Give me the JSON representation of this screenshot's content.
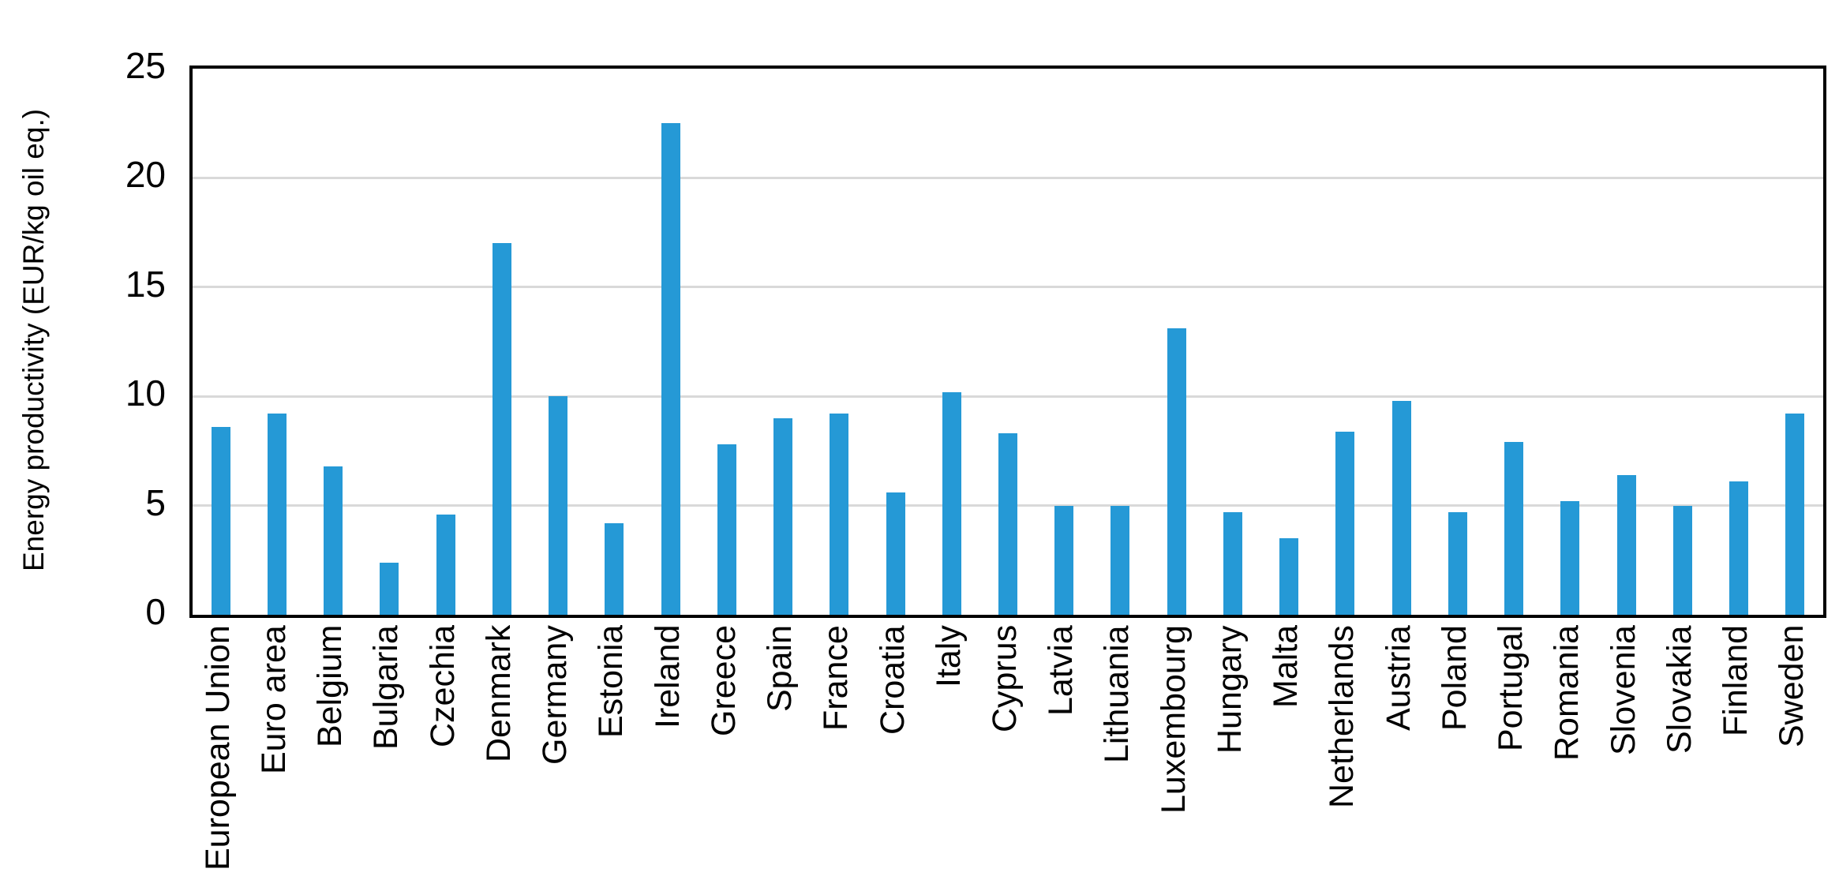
{
  "chart_data": {
    "type": "bar",
    "title": "",
    "xlabel": "",
    "ylabel": "Energy productivity (EUR/kg oil eq.)",
    "ylim": [
      0,
      25
    ],
    "y_ticks": [
      0,
      5,
      10,
      15,
      20,
      25
    ],
    "grid": true,
    "legend": false,
    "bar_color": "#2599D6",
    "gridline_color": "#D9D9D9",
    "axis_color": "#000000",
    "categories": [
      "European Union",
      "Euro area",
      "Belgium",
      "Bulgaria",
      "Czechia",
      "Denmark",
      "Germany",
      "Estonia",
      "Ireland",
      "Greece",
      "Spain",
      "France",
      "Croatia",
      "Italy",
      "Cyprus",
      "Latvia",
      "Lithuania",
      "Luxembourg",
      "Hungary",
      "Malta",
      "Netherlands",
      "Austria",
      "Poland",
      "Portugal",
      "Romania",
      "Slovenia",
      "Slovakia",
      "Finland",
      "Sweden"
    ],
    "values": [
      8.6,
      9.2,
      6.8,
      2.4,
      4.6,
      17.0,
      10.0,
      4.2,
      22.5,
      7.8,
      9.0,
      9.2,
      5.6,
      10.2,
      8.3,
      5.0,
      5.0,
      13.1,
      4.7,
      3.5,
      8.4,
      9.8,
      4.7,
      7.9,
      5.2,
      6.4,
      5.0,
      6.1,
      9.2
    ]
  }
}
